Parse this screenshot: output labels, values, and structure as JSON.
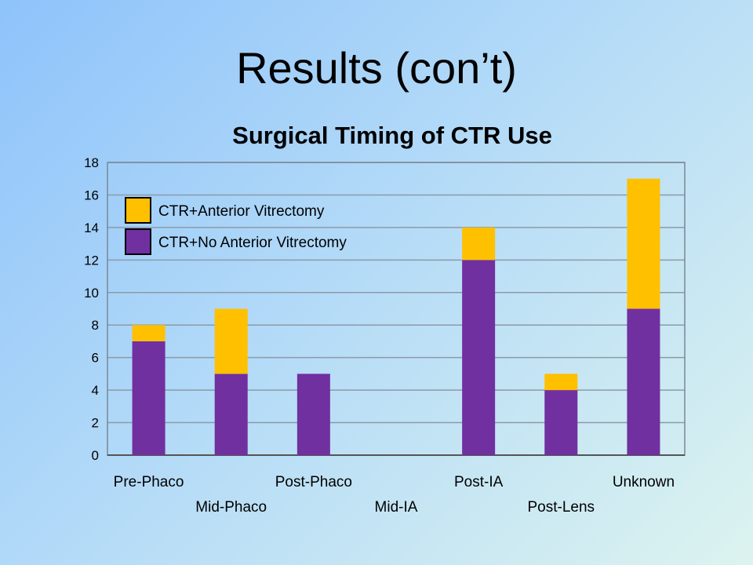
{
  "slide": {
    "title": "Results (con’t)"
  },
  "chart_data": {
    "type": "bar",
    "stacked": true,
    "title": "Surgical Timing of CTR Use",
    "xlabel": "",
    "ylabel": "",
    "categories": [
      "Pre-Phaco",
      "Mid-Phaco",
      "Post-Phaco",
      "Mid-IA",
      "Post-IA",
      "Post-Lens",
      "Unknown"
    ],
    "series": [
      {
        "name": "CTR+No Anterior Vitrectomy",
        "color": "#7030a0",
        "values": [
          7,
          5,
          5,
          0,
          12,
          4,
          9
        ]
      },
      {
        "name": "CTR+Anterior Vitrectomy",
        "color": "#ffc000",
        "values": [
          1,
          4,
          0,
          0,
          2,
          1,
          8
        ]
      }
    ],
    "legend_order": [
      "CTR+Anterior Vitrectomy",
      "CTR+No Anterior Vitrectomy"
    ],
    "ylim": [
      0,
      18
    ],
    "yticks": [
      0,
      2,
      4,
      6,
      8,
      10,
      12,
      14,
      16,
      18
    ],
    "grid": true,
    "legend_position": "top-left inside plot"
  }
}
